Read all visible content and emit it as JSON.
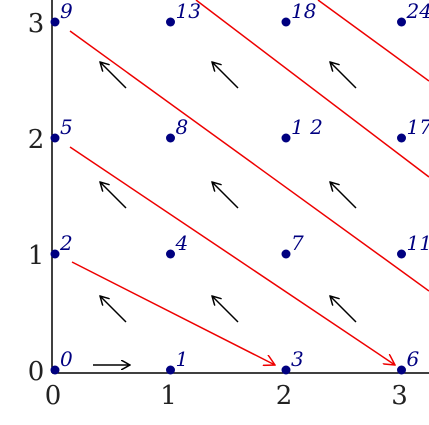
{
  "axes": {
    "x_ticks": [
      "0",
      "1",
      "2",
      "3"
    ],
    "y_ticks": [
      "0",
      "1",
      "2",
      "3"
    ]
  },
  "points": [
    {
      "label": "0"
    },
    {
      "label": "1"
    },
    {
      "label": "3"
    },
    {
      "label": "6"
    },
    {
      "label": "2"
    },
    {
      "label": "4"
    },
    {
      "label": "7"
    },
    {
      "label": "11"
    },
    {
      "label": "5"
    },
    {
      "label": "8"
    },
    {
      "label": "1 2"
    },
    {
      "label": "17"
    },
    {
      "label": "9"
    },
    {
      "label": "13"
    },
    {
      "label": "18"
    },
    {
      "label": "24"
    }
  ]
}
